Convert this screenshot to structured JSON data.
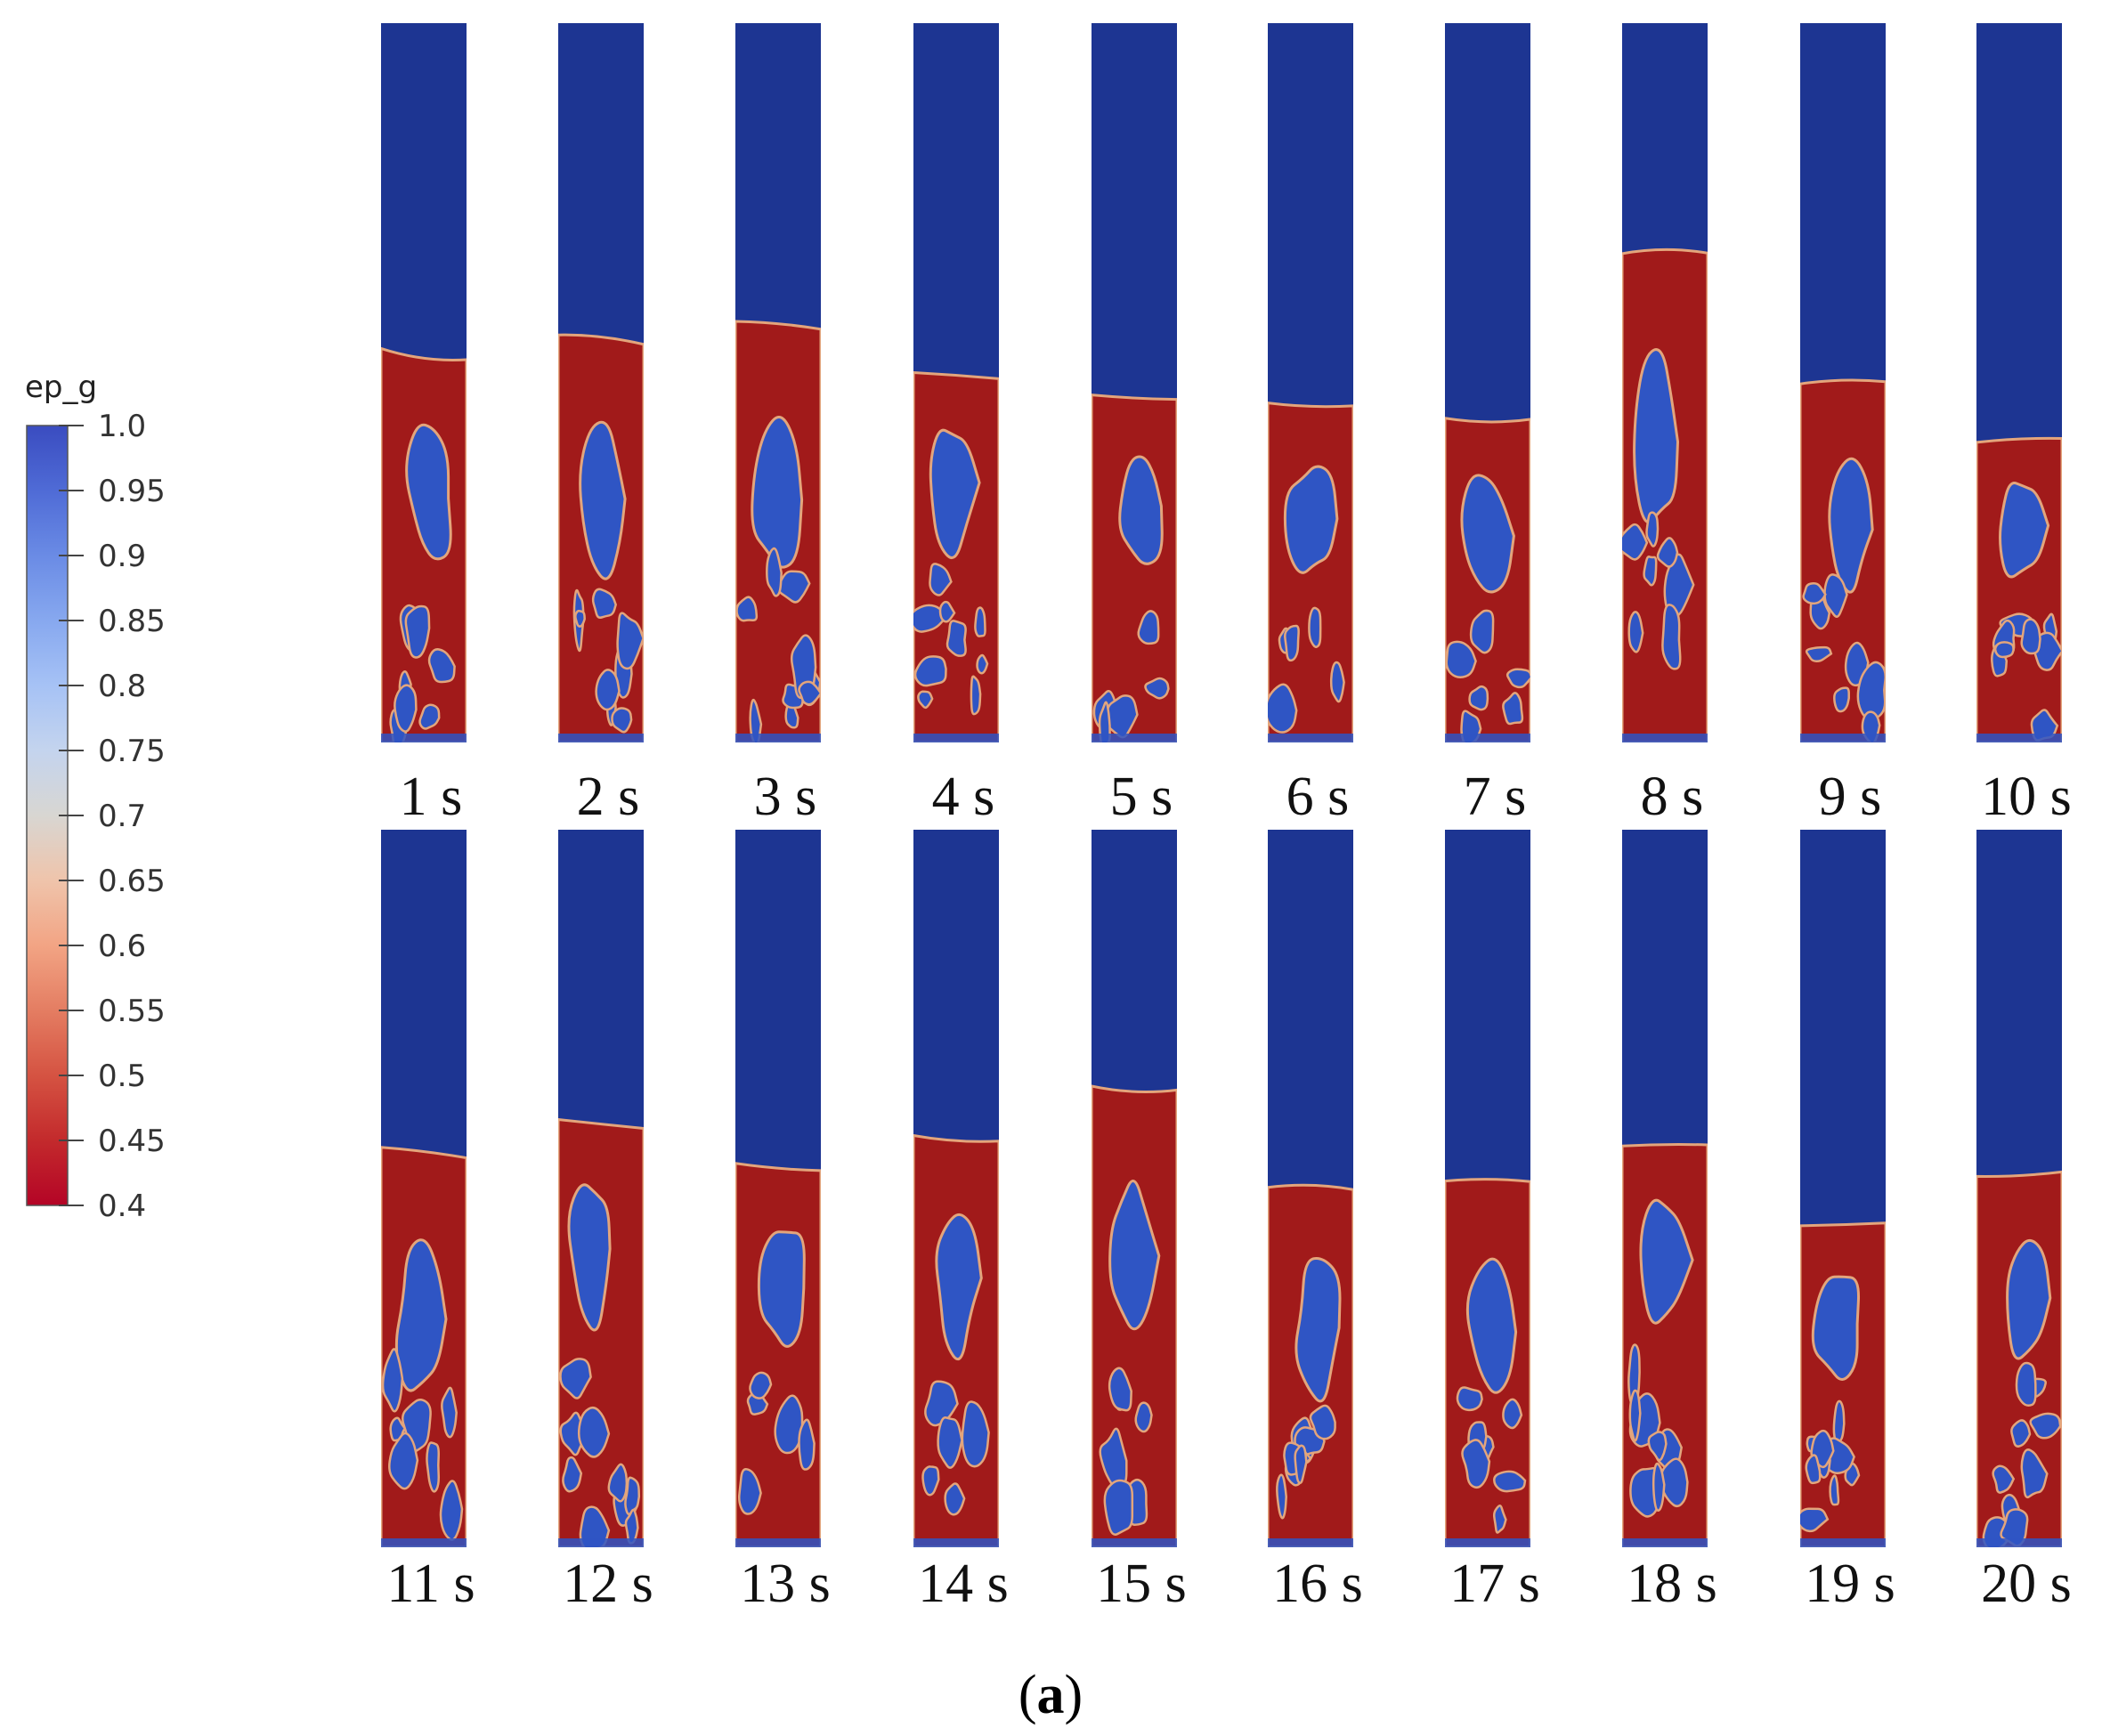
{
  "colorbar": {
    "title": "ep_g",
    "ticks": [
      "1.0",
      "0.95",
      "0.9",
      "0.85",
      "0.8",
      "0.75",
      "0.7",
      "0.65",
      "0.6",
      "0.55",
      "0.5",
      "0.45",
      "0.4"
    ],
    "stops": [
      "#3a4cc0",
      "#4f6bd6",
      "#6a8be5",
      "#87a8ef",
      "#a6c2f5",
      "#c4d4ee",
      "#d8d6d2",
      "#efc4ab",
      "#f2a484",
      "#e47d62",
      "#d55342",
      "#c32a2c",
      "#b40426"
    ]
  },
  "colors": {
    "gas": "#1d3592",
    "solid": "#a11a1a",
    "edge": "#e3a57c",
    "bubble": "#2f55c4"
  },
  "rows": [
    {
      "frames": [
        {
          "label": "1 s",
          "bed": 0.54
        },
        {
          "label": "2 s",
          "bed": 0.56
        },
        {
          "label": "3 s",
          "bed": 0.58
        },
        {
          "label": "4 s",
          "bed": 0.51
        },
        {
          "label": "5 s",
          "bed": 0.48
        },
        {
          "label": "6 s",
          "bed": 0.47
        },
        {
          "label": "7 s",
          "bed": 0.45
        },
        {
          "label": "8 s",
          "bed": 0.68
        },
        {
          "label": "9 s",
          "bed": 0.5
        },
        {
          "label": "10 s",
          "bed": 0.42
        }
      ]
    },
    {
      "frames": [
        {
          "label": "11 s",
          "bed": 0.55
        },
        {
          "label": "12 s",
          "bed": 0.59
        },
        {
          "label": "13 s",
          "bed": 0.53
        },
        {
          "label": "14 s",
          "bed": 0.57
        },
        {
          "label": "15 s",
          "bed": 0.64
        },
        {
          "label": "16 s",
          "bed": 0.5
        },
        {
          "label": "17 s",
          "bed": 0.51
        },
        {
          "label": "18 s",
          "bed": 0.56
        },
        {
          "label": "19 s",
          "bed": 0.45
        },
        {
          "label": "20 s",
          "bed": 0.52
        }
      ]
    }
  ],
  "caption": {
    "prefix": "(",
    "letter": "a",
    "suffix": ")"
  }
}
